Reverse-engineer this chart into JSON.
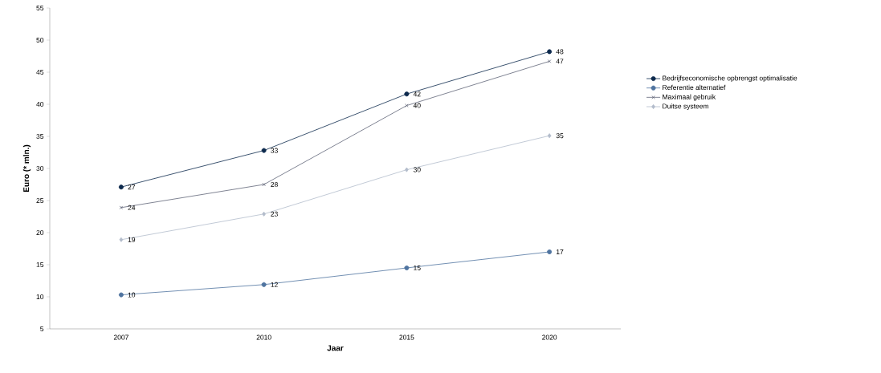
{
  "chart_data": {
    "type": "line",
    "xlabel": "Jaar",
    "ylabel": "Euro (* mln.)",
    "categories": [
      "2007",
      "2010",
      "2015",
      "2020"
    ],
    "ylim": [
      5,
      55
    ],
    "yticks": [
      5,
      10,
      15,
      20,
      25,
      30,
      35,
      40,
      45,
      50,
      55
    ],
    "legend": "right",
    "series": [
      {
        "name": "Bedrijfseconomische opbrengst optimalisatie",
        "color": "#0d2a4d",
        "marker": "circle",
        "values": [
          27.1,
          32.8,
          41.6,
          48.2
        ],
        "value_labels": [
          "27",
          "33",
          "42",
          "48"
        ]
      },
      {
        "name": "Referentie alternatief",
        "color": "#4f74a0",
        "marker": "circle",
        "values": [
          10.3,
          11.9,
          14.5,
          17.0
        ],
        "value_labels": [
          "10",
          "12",
          "15",
          "17"
        ]
      },
      {
        "name": "Maximaal gebruik",
        "color": "#5f6577",
        "marker": "cross",
        "values": [
          23.9,
          27.5,
          39.8,
          46.7
        ],
        "value_labels": [
          "24",
          "28",
          "40",
          "47"
        ]
      },
      {
        "name": "Duitse systeem",
        "color": "#b3bccb",
        "marker": "diamond",
        "values": [
          18.9,
          22.9,
          29.8,
          35.1
        ],
        "value_labels": [
          "19",
          "23",
          "30",
          "35"
        ]
      }
    ]
  }
}
